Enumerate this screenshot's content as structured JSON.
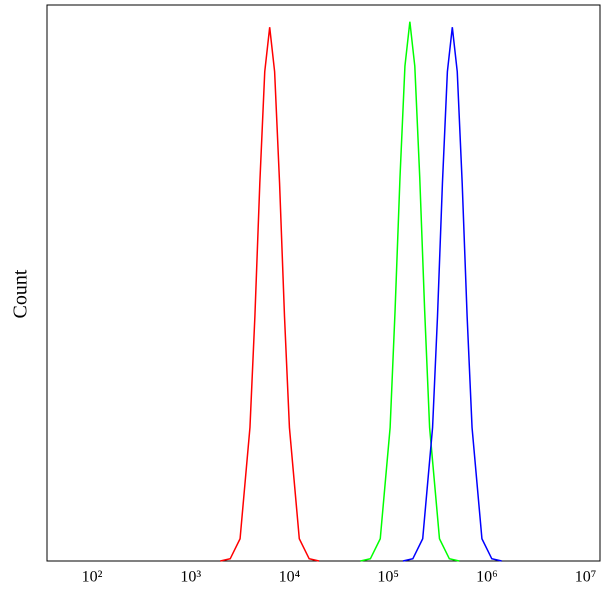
{
  "chart_data": {
    "type": "line",
    "y_label": "Count",
    "xscale": "log",
    "xlim": [
      35,
      14000000
    ],
    "ylim": [
      0,
      100
    ],
    "xticks": [
      {
        "value": 100,
        "label": "10²"
      },
      {
        "value": 1000,
        "label": "10³"
      },
      {
        "value": 10000,
        "label": "10⁴"
      },
      {
        "value": 100000,
        "label": "10⁵"
      },
      {
        "value": 1000000,
        "label": "10⁶"
      },
      {
        "value": 10000000,
        "label": "10⁷"
      }
    ],
    "series": [
      {
        "color": "#ff0000",
        "x": [
          1995,
          2512,
          3162,
          3981,
          4467,
          5012,
          5623,
          6310,
          7079,
          7943,
          8913,
          10000,
          12589,
          15849,
          19953
        ],
        "values": [
          0,
          0.4,
          4,
          24,
          44,
          68,
          88,
          96,
          88,
          68,
          44,
          24,
          4,
          0.4,
          0
        ]
      },
      {
        "color": "#00ff00",
        "x": [
          52481,
          66069,
          83176,
          104713,
          117490,
          131826,
          147911,
          165959,
          186209,
          208930,
          234423,
          263027,
          331131,
          416869,
          524807
        ],
        "values": [
          0,
          0.4,
          4,
          24,
          45,
          69,
          89,
          97,
          89,
          69,
          45,
          24,
          4,
          0.4,
          0
        ]
      },
      {
        "color": "#0000ff",
        "x": [
          141254,
          177828,
          223872,
          281838,
          316228,
          354813,
          398107,
          446684,
          501187,
          562341,
          630957,
          707946,
          891251,
          1122018,
          1412538
        ],
        "values": [
          0,
          0.4,
          4,
          24,
          44,
          68,
          88,
          96,
          88,
          68,
          44,
          24,
          4,
          0.4,
          0
        ]
      }
    ]
  }
}
